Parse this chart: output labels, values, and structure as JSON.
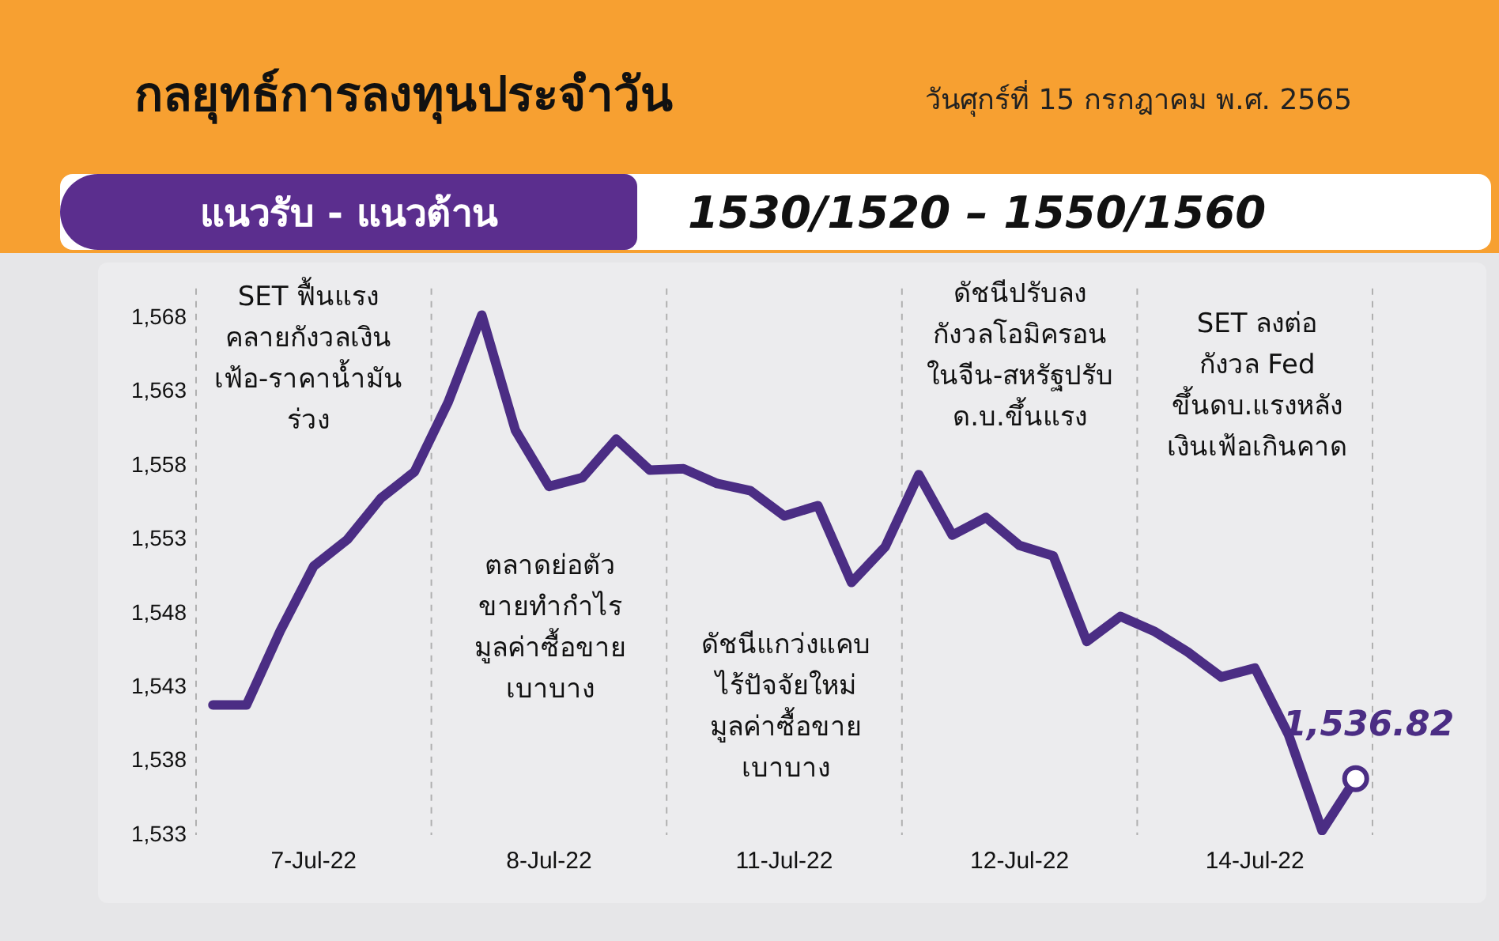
{
  "chart_data": {
    "type": "line",
    "title": "กลยุทธ์การลงทุนประจำวัน",
    "subtitle": "วันศุกร์ที่ 15 กรกฎาคม พ.ศ. 2565",
    "categories": [
      null,
      null,
      null,
      "7-Jul-22",
      null,
      null,
      null,
      null,
      null,
      null,
      "8-Jul-22",
      null,
      null,
      null,
      null,
      null,
      null,
      "11-Jul-22",
      null,
      null,
      null,
      null,
      null,
      null,
      "12-Jul-22",
      null,
      null,
      null,
      null,
      null,
      null,
      "14-Jul-22",
      null,
      null,
      null
    ],
    "series": [
      {
        "color": "#4b2d84",
        "values": [
          1541.8,
          1541.8,
          1546.8,
          1551.2,
          1553.0,
          1555.8,
          1557.6,
          1562.3,
          1568.2,
          1560.4,
          1556.6,
          1557.2,
          1559.8,
          1557.7,
          1557.8,
          1556.8,
          1556.3,
          1554.6,
          1555.3,
          1550.1,
          1552.5,
          1557.4,
          1553.3,
          1554.5,
          1552.6,
          1551.9,
          1546.1,
          1547.8,
          1546.8,
          1545.4,
          1543.7,
          1544.3,
          1539.8,
          1533.3,
          1536.82
        ]
      }
    ],
    "ylim": [
      1533,
      1570
    ],
    "yticks": [
      {
        "value": 1533,
        "label": "1,533"
      },
      {
        "value": 1538,
        "label": "1,538"
      },
      {
        "value": 1543,
        "label": "1,543"
      },
      {
        "value": 1548,
        "label": "1,548"
      },
      {
        "value": 1553,
        "label": "1,553"
      },
      {
        "value": 1558,
        "label": "1,558"
      },
      {
        "value": 1563,
        "label": "1,563"
      },
      {
        "value": 1568,
        "label": "1,568"
      }
    ],
    "grid": "x",
    "legend": false,
    "annotations": [
      "แนวรับ - แนวต้าน",
      "1530/1520   –   1550/1560",
      "SET ฟื้นแรง\nคลายกังวลเงิน\nเฟ้อ-ราคาน้ำมัน\nร่วง",
      "ตลาดย่อตัว\nขายทำกำไร\nมูลค่าซื้อขาย\nเบาบาง",
      "ดัชนีแกว่งแคบ\nไร้ปัจจัยใหม่\nมูลค่าซื้อขาย\nเบาบาง",
      "ดัชนีปรับลง\nกังวลโอมิครอน\nในจีน-สหรัฐปรับ\nด.บ.ขึ้นแรง",
      "SET ลงต่อ\nกังวล Fed\nขึ้นดบ.แรงหลัง\nเงินเฟ้อเกินคาด",
      {
        "text": "1,536.82",
        "y": 1536.82
      }
    ]
  }
}
